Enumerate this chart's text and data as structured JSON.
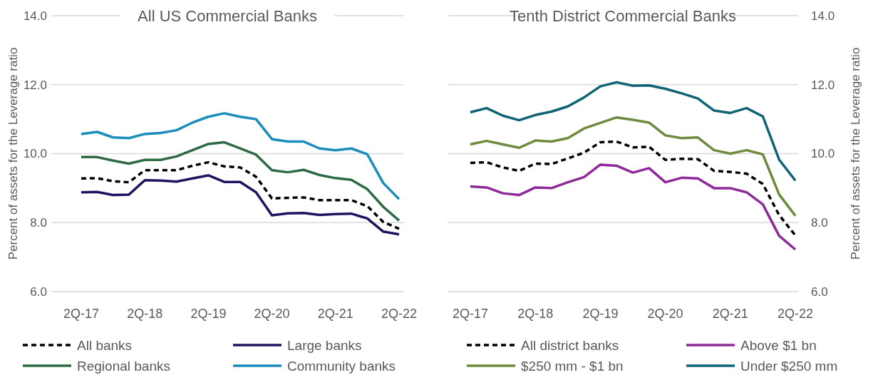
{
  "chart_data": [
    {
      "type": "line",
      "title": "All US Commercial Banks",
      "ylabel": "Percent of assets for the Leverage ratio",
      "categories": [
        "2Q-17",
        null,
        null,
        null,
        "2Q-18",
        null,
        null,
        null,
        "2Q-19",
        null,
        null,
        null,
        "2Q-20",
        null,
        null,
        null,
        "2Q-21",
        null,
        null,
        null,
        "2Q-22"
      ],
      "series": [
        {
          "name": "All banks",
          "color": "#000000",
          "line_style": "dashed",
          "values": [
            9.28,
            9.29,
            9.2,
            9.17,
            9.52,
            9.52,
            9.52,
            9.65,
            9.75,
            9.63,
            9.6,
            9.33,
            8.7,
            8.72,
            8.73,
            8.65,
            8.65,
            8.65,
            8.48,
            8.02,
            7.82
          ]
        },
        {
          "name": "Large banks",
          "color": "#1e1560",
          "line_style": "solid",
          "values": [
            8.88,
            8.89,
            8.8,
            8.81,
            9.23,
            9.22,
            9.19,
            9.28,
            9.37,
            9.18,
            9.18,
            8.88,
            8.21,
            8.27,
            8.28,
            8.22,
            8.25,
            8.26,
            8.12,
            7.74,
            7.66
          ]
        },
        {
          "name": "Regional banks",
          "color": "#2e6b45",
          "line_style": "solid",
          "values": [
            9.9,
            9.9,
            9.8,
            9.71,
            9.82,
            9.82,
            9.92,
            10.1,
            10.28,
            10.33,
            10.15,
            9.97,
            9.52,
            9.46,
            9.53,
            9.38,
            9.29,
            9.24,
            8.97,
            8.46,
            8.06
          ]
        },
        {
          "name": "Community banks",
          "color": "#1a8dbb",
          "line_style": "solid",
          "values": [
            10.57,
            10.63,
            10.47,
            10.45,
            10.57,
            10.6,
            10.68,
            10.9,
            11.07,
            11.17,
            11.07,
            11.0,
            10.42,
            10.35,
            10.35,
            10.15,
            10.1,
            10.15,
            9.98,
            9.15,
            8.68
          ]
        }
      ],
      "ylim": [
        6,
        14
      ],
      "yticks": [
        {
          "value": 6,
          "label": "6.0"
        },
        {
          "value": 8,
          "label": "8.0"
        },
        {
          "value": 10,
          "label": "10.0"
        },
        {
          "value": 12,
          "label": "12.0"
        },
        {
          "value": 14,
          "label": "14.0"
        }
      ],
      "grid": "y",
      "legend": "bottom",
      "marker": "none"
    },
    {
      "type": "line",
      "title": "Tenth District Commercial Banks",
      "ylabel": "Percent of assets for the Leverage ratio",
      "categories": [
        "2Q-17",
        null,
        null,
        null,
        "2Q-18",
        null,
        null,
        null,
        "2Q-19",
        null,
        null,
        null,
        "2Q-20",
        null,
        null,
        null,
        "2Q-21",
        null,
        null,
        null,
        "2Q-22"
      ],
      "series": [
        {
          "name": "All district banks",
          "color": "#000000",
          "line_style": "dashed",
          "values": [
            9.73,
            9.75,
            9.6,
            9.5,
            9.71,
            9.7,
            9.86,
            10.03,
            10.33,
            10.35,
            10.18,
            10.2,
            9.82,
            9.85,
            9.84,
            9.5,
            9.47,
            9.42,
            9.12,
            8.22,
            7.63
          ]
        },
        {
          "name": "Above $1 bn",
          "color": "#8e2a9a",
          "line_style": "solid",
          "values": [
            9.05,
            9.02,
            8.85,
            8.8,
            9.02,
            9.0,
            9.17,
            9.32,
            9.68,
            9.65,
            9.45,
            9.58,
            9.17,
            9.3,
            9.28,
            9.0,
            9.0,
            8.88,
            8.53,
            7.62,
            7.22
          ]
        },
        {
          "name": "$250 mm - $1 bn",
          "color": "#6e8b3d",
          "line_style": "solid",
          "values": [
            10.27,
            10.37,
            10.27,
            10.17,
            10.38,
            10.35,
            10.45,
            10.73,
            10.89,
            11.05,
            10.98,
            10.9,
            10.53,
            10.45,
            10.47,
            10.1,
            10.0,
            10.1,
            9.98,
            8.82,
            8.2
          ]
        },
        {
          "name": "Under $250 mm",
          "color": "#0e6377",
          "line_style": "solid",
          "values": [
            11.2,
            11.32,
            11.1,
            10.97,
            11.12,
            11.22,
            11.37,
            11.63,
            11.95,
            12.07,
            11.97,
            11.98,
            11.88,
            11.75,
            11.6,
            11.25,
            11.18,
            11.32,
            11.08,
            9.83,
            9.22
          ]
        }
      ],
      "ylim": [
        6,
        14
      ],
      "yticks": [
        {
          "value": 6,
          "label": "6.0"
        },
        {
          "value": 8,
          "label": "8.0"
        },
        {
          "value": 10,
          "label": "10.0"
        },
        {
          "value": 12,
          "label": "12.0"
        },
        {
          "value": 14,
          "label": "14.0"
        }
      ],
      "grid": "y",
      "legend": "bottom",
      "marker": "none"
    }
  ]
}
